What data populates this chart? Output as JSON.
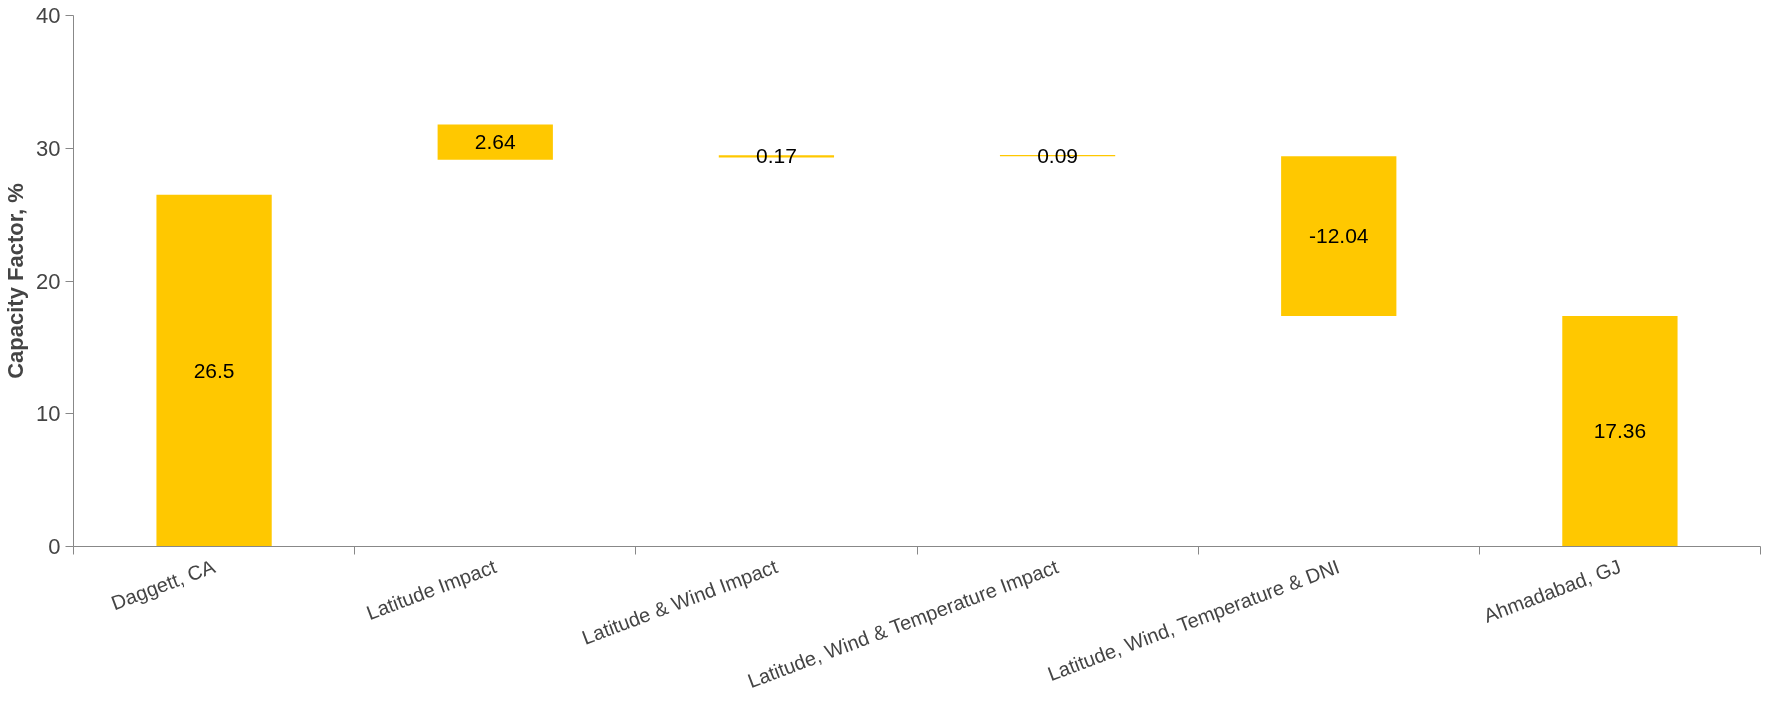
{
  "chart_data": {
    "type": "bar",
    "ylabel": "Capacity Factor, %",
    "categories": [
      "Daggett, CA",
      "Latitude Impact",
      "Latitude & Wind Impact",
      "Latitude, Wind & Temperature Impact",
      "Latitude, Wind, Temperature & DNI",
      "Ahmadabad, GJ"
    ],
    "values": [
      26.5,
      2.64,
      0.17,
      0.09,
      -12.04,
      17.36
    ],
    "base": [
      0,
      29.14,
      29.31,
      29.4,
      29.4,
      0
    ],
    "color": "#ffc800",
    "ylim": [
      0,
      40
    ],
    "yticks": [
      0,
      10,
      20,
      30,
      40
    ],
    "data_labels": true,
    "grid": false
  }
}
